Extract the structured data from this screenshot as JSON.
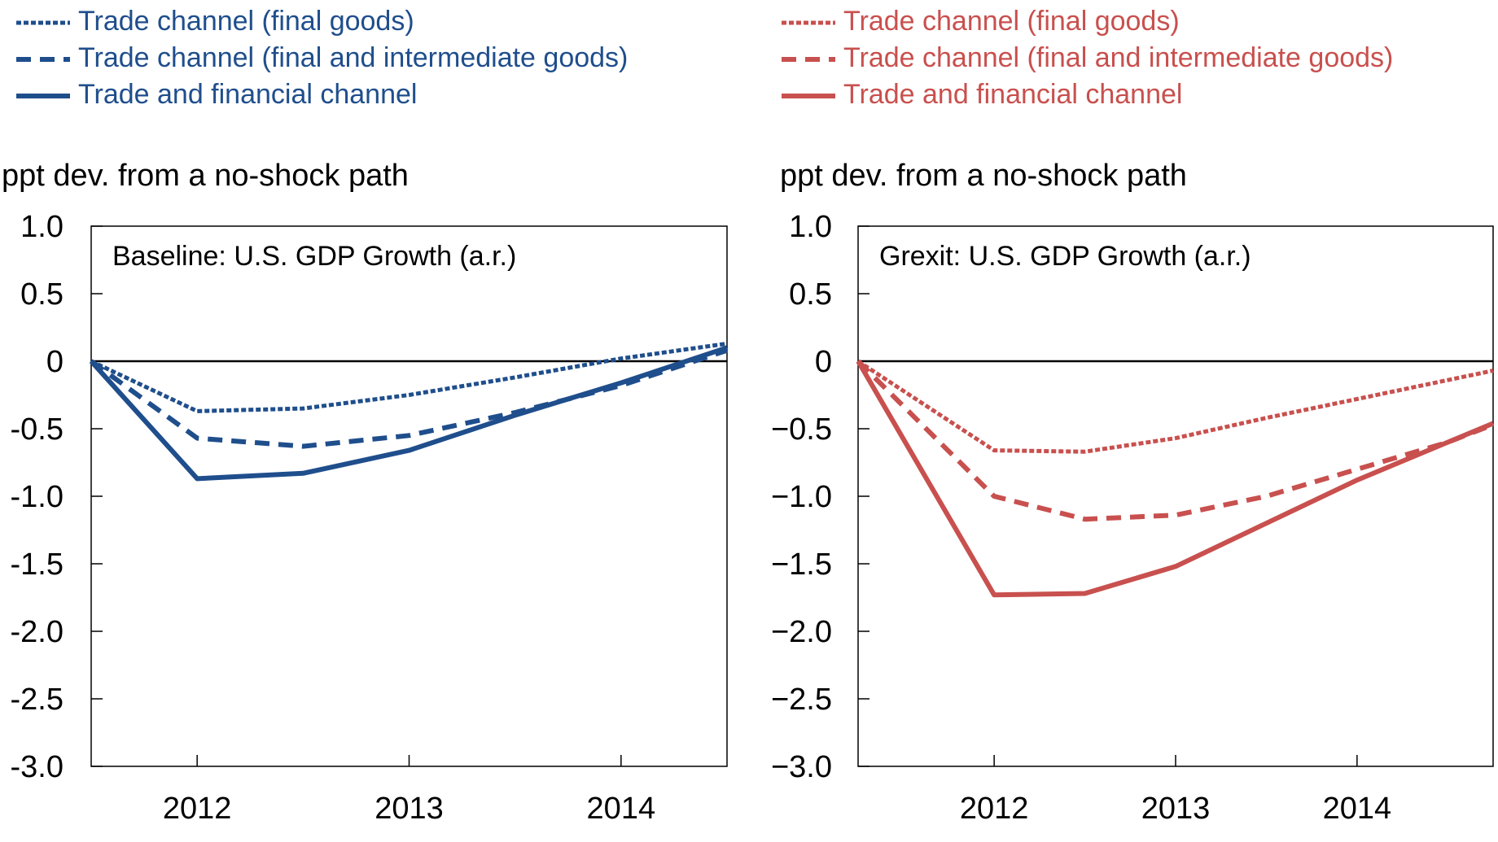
{
  "legend": {
    "left": {
      "color": "#1F4E8C",
      "items": [
        {
          "label": "Trade channel (final goods)",
          "style": "dotted"
        },
        {
          "label": "Trade channel (final and intermediate goods)",
          "style": "dashed"
        },
        {
          "label": "Trade and financial channel",
          "style": "solid"
        }
      ]
    },
    "right": {
      "color": "#C8504E",
      "items": [
        {
          "label": "Trade channel (final goods)",
          "style": "dotted"
        },
        {
          "label": "Trade channel (final and intermediate goods)",
          "style": "dashed"
        },
        {
          "label": "Trade and financial channel",
          "style": "solid"
        }
      ]
    }
  },
  "chart_data": [
    {
      "type": "line",
      "title": "Baseline: U.S. GDP Growth (a.r.)",
      "ylabel": "ppt dev. from a no-shock path",
      "xlabel": "",
      "ylim": [
        -3.0,
        1.0
      ],
      "yticks": [
        1.0,
        0.5,
        0,
        -0.5,
        -1.0,
        -1.5,
        -2.0,
        -2.5,
        -3.0
      ],
      "ytick_labels": [
        "1.0",
        "0.5",
        "0",
        "-0.5",
        "-1.0",
        "-1.5",
        "-2.0",
        "-2.5",
        "-3.0"
      ],
      "xlim": [
        0,
        6
      ],
      "xtick_positions": [
        1,
        3,
        5
      ],
      "xtick_labels": [
        "2012",
        "2013",
        "2014"
      ],
      "color": "#1F4E8C",
      "zero_line": true,
      "x": [
        0,
        1,
        2,
        3,
        4,
        5,
        6
      ],
      "series": [
        {
          "name": "Trade channel (final goods)",
          "style": "dotted",
          "values": [
            0,
            -0.37,
            -0.35,
            -0.25,
            -0.12,
            0.02,
            0.13
          ]
        },
        {
          "name": "Trade channel (final and intermediate goods)",
          "style": "dashed",
          "values": [
            0,
            -0.57,
            -0.63,
            -0.55,
            -0.38,
            -0.18,
            0.08
          ]
        },
        {
          "name": "Trade and financial channel",
          "style": "solid",
          "values": [
            0,
            -0.87,
            -0.83,
            -0.66,
            -0.4,
            -0.16,
            0.1
          ]
        }
      ]
    },
    {
      "type": "line",
      "title": "Grexit: U.S. GDP Growth (a.r.)",
      "ylabel": "ppt dev. from a no-shock path",
      "xlabel": "",
      "ylim": [
        -3.0,
        1.0
      ],
      "yticks": [
        1.0,
        0.5,
        0,
        -0.5,
        -1.0,
        -1.5,
        -2.0,
        -2.5,
        -3.0
      ],
      "ytick_labels": [
        "1.0",
        "0.5",
        "0",
        "−0.5",
        "−1.0",
        "−1.5",
        "−2.0",
        "−2.5",
        "−3.0"
      ],
      "xlim": [
        0,
        7
      ],
      "xtick_positions": [
        1.5,
        3.5,
        5.5
      ],
      "xtick_labels": [
        "2012",
        "2013",
        "2014"
      ],
      "color": "#C8504E",
      "zero_line": true,
      "x": [
        0,
        1.5,
        2.5,
        3.5,
        4.5,
        5.5,
        6.5,
        7
      ],
      "series": [
        {
          "name": "Trade channel (final goods)",
          "style": "dotted",
          "values": [
            0,
            -0.66,
            -0.67,
            -0.57,
            -0.42,
            -0.28,
            -0.14,
            -0.07
          ]
        },
        {
          "name": "Trade channel (final and intermediate goods)",
          "style": "dashed",
          "values": [
            0,
            -1.0,
            -1.17,
            -1.14,
            -1.0,
            -0.8,
            -0.6,
            -0.47
          ]
        },
        {
          "name": "Trade and financial channel",
          "style": "solid",
          "values": [
            0,
            -1.73,
            -1.72,
            -1.52,
            -1.2,
            -0.88,
            -0.6,
            -0.46
          ]
        }
      ]
    }
  ]
}
